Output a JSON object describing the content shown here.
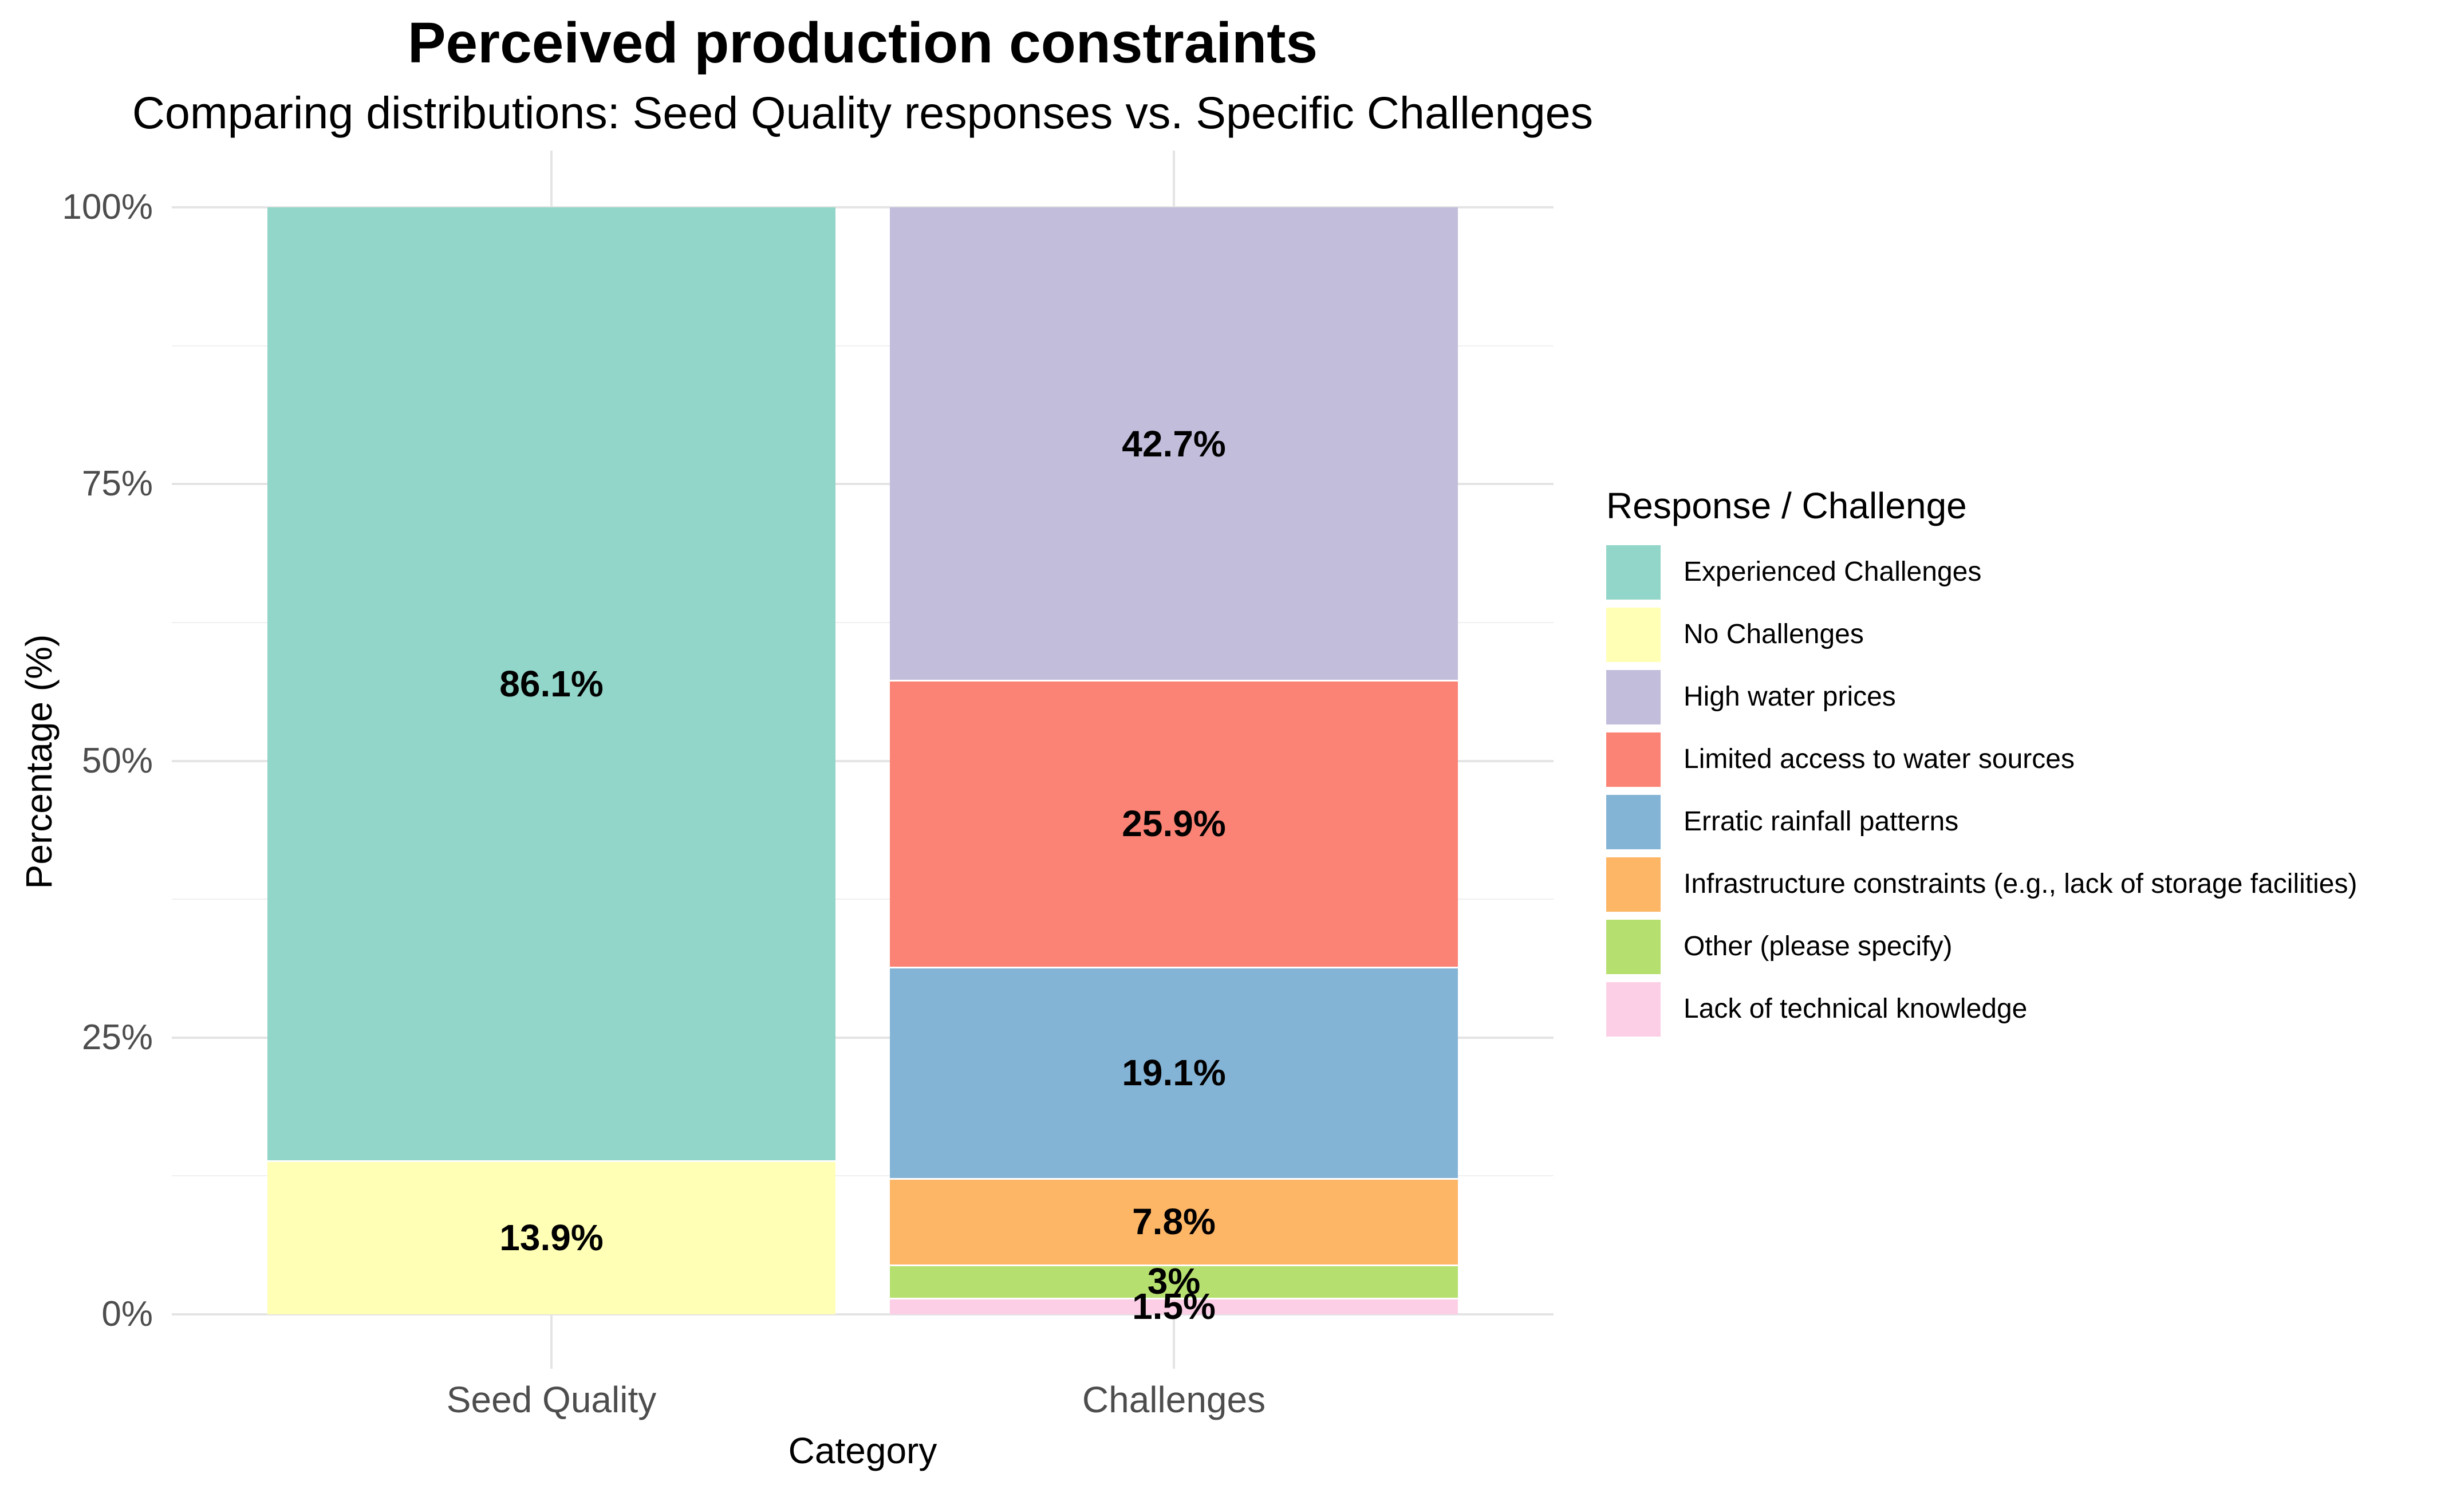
{
  "title": "Perceived production constraints",
  "subtitle": "Comparing distributions: Seed Quality responses vs. Specific Challenges",
  "style": {
    "background": "#FFFFFF",
    "grid_major_color": "#E4E4E4",
    "grid_minor_color": "#F0F0F0",
    "tick_label_color": "#4D4D4D",
    "segment_border_color": "#FFFFFF"
  },
  "chart_data": {
    "type": "bar",
    "stacked": true,
    "percent_stack": true,
    "title": "Perceived production constraints",
    "subtitle": "Comparing distributions: Seed Quality responses vs. Specific Challenges",
    "xlabel": "Category",
    "ylabel": "Percentage (%)",
    "ylim": [
      0,
      100
    ],
    "grid": true,
    "legend_position": "right",
    "categories": [
      "Seed Quality",
      "Challenges"
    ],
    "y_ticks": [
      {
        "label": "0%",
        "value": 0
      },
      {
        "label": "25%",
        "value": 25
      },
      {
        "label": "50%",
        "value": 50
      },
      {
        "label": "75%",
        "value": 75
      },
      {
        "label": "100%",
        "value": 100
      }
    ],
    "y_minor_ticks": [
      12.5,
      37.5,
      62.5,
      87.5
    ],
    "stacks": [
      {
        "category": "Seed Quality",
        "segments": [
          {
            "name": "Experienced Challenges",
            "value": 86.1,
            "label": "86.1%",
            "color": "#92D5C9"
          },
          {
            "name": "No Challenges",
            "value": 13.9,
            "label": "13.9%",
            "color": "#FFFFB5"
          }
        ]
      },
      {
        "category": "Challenges",
        "segments": [
          {
            "name": "High water prices",
            "value": 42.7,
            "label": "42.7%",
            "color": "#C1BDDB"
          },
          {
            "name": "Limited access to water sources",
            "value": 25.9,
            "label": "25.9%",
            "color": "#FB8375"
          },
          {
            "name": "Erratic rainfall patterns",
            "value": 19.1,
            "label": "19.1%",
            "color": "#84B4D5"
          },
          {
            "name": "Infrastructure constraints (e.g., lack of storage facilities)",
            "value": 7.8,
            "label": "7.8%",
            "color": "#FDB566"
          },
          {
            "name": "Other (please specify)",
            "value": 3.0,
            "label": "3%",
            "color": "#B5DF6E"
          },
          {
            "name": "Lack of technical knowledge",
            "value": 1.5,
            "label": "1.5%",
            "color": "#FCCFE6"
          }
        ]
      }
    ],
    "legend": {
      "title": "Response / Challenge",
      "entries": [
        {
          "label": "Experienced Challenges",
          "color": "#92D5C9"
        },
        {
          "label": "No Challenges",
          "color": "#FFFFB5"
        },
        {
          "label": "High water prices",
          "color": "#C1BDDB"
        },
        {
          "label": "Limited access to water sources",
          "color": "#FB8375"
        },
        {
          "label": "Erratic rainfall patterns",
          "color": "#84B4D5"
        },
        {
          "label": "Infrastructure constraints (e.g., lack of storage facilities)",
          "color": "#FDB566"
        },
        {
          "label": "Other (please specify)",
          "color": "#B5DF6E"
        },
        {
          "label": "Lack of technical knowledge",
          "color": "#FCCFE6"
        }
      ]
    }
  }
}
